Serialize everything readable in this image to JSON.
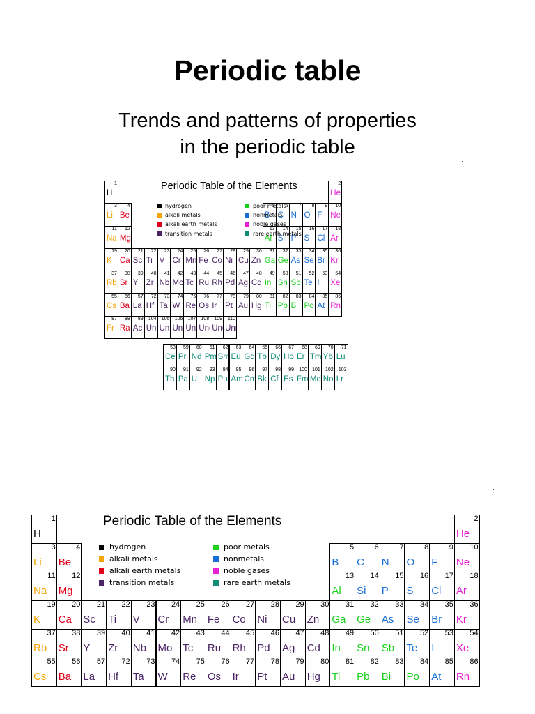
{
  "page": {
    "title": "Periodic table",
    "subtitle_line1": "Trends and patterns of properties",
    "subtitle_line2": "in the periodic table"
  },
  "table": {
    "title": "Periodic Table of the Elements",
    "legend": [
      {
        "label": "hydrogen",
        "color": "#000000"
      },
      {
        "label": "alkali metals",
        "color": "#f5a400"
      },
      {
        "label": "alkali earth metals",
        "color": "#e0001b"
      },
      {
        "label": "transition metals",
        "color": "#4a2464"
      },
      {
        "label": "poor metals",
        "color": "#19d11d"
      },
      {
        "label": "nonmetals",
        "color": "#1a6fd6"
      },
      {
        "label": "noble gases",
        "color": "#e61fd3"
      },
      {
        "label": "rare earth metals",
        "color": "#118a76"
      }
    ],
    "elements": [
      {
        "n": "1",
        "s": "H",
        "c": "#000000"
      },
      {
        "n": "2",
        "s": "He",
        "c": "#e61fd3"
      },
      {
        "n": "3",
        "s": "Li",
        "c": "#f5a400"
      },
      {
        "n": "4",
        "s": "Be",
        "c": "#e0001b"
      },
      {
        "n": "5",
        "s": "B",
        "c": "#1a6fd6"
      },
      {
        "n": "6",
        "s": "C",
        "c": "#1a6fd6"
      },
      {
        "n": "7",
        "s": "N",
        "c": "#1a6fd6"
      },
      {
        "n": "8",
        "s": "O",
        "c": "#1a6fd6"
      },
      {
        "n": "9",
        "s": "F",
        "c": "#1a6fd6"
      },
      {
        "n": "10",
        "s": "Ne",
        "c": "#e61fd3"
      },
      {
        "n": "11",
        "s": "Na",
        "c": "#f5a400"
      },
      {
        "n": "12",
        "s": "Mg",
        "c": "#e0001b"
      },
      {
        "n": "13",
        "s": "Al",
        "c": "#19d11d"
      },
      {
        "n": "14",
        "s": "Si",
        "c": "#1a6fd6"
      },
      {
        "n": "15",
        "s": "P",
        "c": "#1a6fd6"
      },
      {
        "n": "16",
        "s": "S",
        "c": "#1a6fd6"
      },
      {
        "n": "17",
        "s": "Cl",
        "c": "#1a6fd6"
      },
      {
        "n": "18",
        "s": "Ar",
        "c": "#e61fd3"
      },
      {
        "n": "19",
        "s": "K",
        "c": "#f5a400"
      },
      {
        "n": "20",
        "s": "Ca",
        "c": "#e0001b"
      },
      {
        "n": "21",
        "s": "Sc",
        "c": "#4a2464"
      },
      {
        "n": "22",
        "s": "Ti",
        "c": "#4a2464"
      },
      {
        "n": "23",
        "s": "V",
        "c": "#4a2464"
      },
      {
        "n": "24",
        "s": "Cr",
        "c": "#4a2464"
      },
      {
        "n": "25",
        "s": "Mn",
        "c": "#4a2464"
      },
      {
        "n": "26",
        "s": "Fe",
        "c": "#4a2464"
      },
      {
        "n": "27",
        "s": "Co",
        "c": "#4a2464"
      },
      {
        "n": "28",
        "s": "Ni",
        "c": "#4a2464"
      },
      {
        "n": "29",
        "s": "Cu",
        "c": "#4a2464"
      },
      {
        "n": "30",
        "s": "Zn",
        "c": "#4a2464"
      },
      {
        "n": "31",
        "s": "Ga",
        "c": "#19d11d"
      },
      {
        "n": "32",
        "s": "Ge",
        "c": "#19d11d"
      },
      {
        "n": "33",
        "s": "As",
        "c": "#1a6fd6"
      },
      {
        "n": "34",
        "s": "Se",
        "c": "#1a6fd6"
      },
      {
        "n": "35",
        "s": "Br",
        "c": "#1a6fd6"
      },
      {
        "n": "36",
        "s": "Kr",
        "c": "#e61fd3"
      },
      {
        "n": "37",
        "s": "Rb",
        "c": "#f5a400"
      },
      {
        "n": "38",
        "s": "Sr",
        "c": "#e0001b"
      },
      {
        "n": "39",
        "s": "Y",
        "c": "#4a2464"
      },
      {
        "n": "40",
        "s": "Zr",
        "c": "#4a2464"
      },
      {
        "n": "41",
        "s": "Nb",
        "c": "#4a2464"
      },
      {
        "n": "42",
        "s": "Mo",
        "c": "#4a2464"
      },
      {
        "n": "43",
        "s": "Tc",
        "c": "#4a2464"
      },
      {
        "n": "44",
        "s": "Ru",
        "c": "#4a2464"
      },
      {
        "n": "45",
        "s": "Rh",
        "c": "#4a2464"
      },
      {
        "n": "46",
        "s": "Pd",
        "c": "#4a2464"
      },
      {
        "n": "47",
        "s": "Ag",
        "c": "#4a2464"
      },
      {
        "n": "48",
        "s": "Cd",
        "c": "#4a2464"
      },
      {
        "n": "49",
        "s": "In",
        "c": "#19d11d"
      },
      {
        "n": "50",
        "s": "Sn",
        "c": "#19d11d"
      },
      {
        "n": "51",
        "s": "Sb",
        "c": "#19d11d"
      },
      {
        "n": "52",
        "s": "Te",
        "c": "#1a6fd6"
      },
      {
        "n": "53",
        "s": "I",
        "c": "#1a6fd6"
      },
      {
        "n": "54",
        "s": "Xe",
        "c": "#e61fd3"
      },
      {
        "n": "55",
        "s": "Cs",
        "c": "#f5a400"
      },
      {
        "n": "56",
        "s": "Ba",
        "c": "#e0001b"
      },
      {
        "n": "57",
        "s": "La",
        "c": "#4a2464"
      },
      {
        "n": "72",
        "s": "Hf",
        "c": "#4a2464"
      },
      {
        "n": "73",
        "s": "Ta",
        "c": "#4a2464"
      },
      {
        "n": "74",
        "s": "W",
        "c": "#4a2464"
      },
      {
        "n": "75",
        "s": "Re",
        "c": "#4a2464"
      },
      {
        "n": "76",
        "s": "Os",
        "c": "#4a2464"
      },
      {
        "n": "77",
        "s": "Ir",
        "c": "#4a2464"
      },
      {
        "n": "78",
        "s": "Pt",
        "c": "#4a2464"
      },
      {
        "n": "79",
        "s": "Au",
        "c": "#4a2464"
      },
      {
        "n": "80",
        "s": "Hg",
        "c": "#4a2464"
      },
      {
        "n": "81",
        "s": "Ti",
        "c": "#19d11d"
      },
      {
        "n": "82",
        "s": "Pb",
        "c": "#19d11d"
      },
      {
        "n": "83",
        "s": "Bi",
        "c": "#19d11d"
      },
      {
        "n": "84",
        "s": "Po",
        "c": "#19d11d"
      },
      {
        "n": "85",
        "s": "At",
        "c": "#1a6fd6"
      },
      {
        "n": "86",
        "s": "Rn",
        "c": "#e61fd3"
      },
      {
        "n": "87",
        "s": "Fr",
        "c": "#f5a400"
      },
      {
        "n": "88",
        "s": "Ra",
        "c": "#e0001b"
      },
      {
        "n": "89",
        "s": "Ac",
        "c": "#4a2464"
      },
      {
        "n": "104",
        "s": "Unq",
        "c": "#4a2464"
      },
      {
        "n": "105",
        "s": "Unp",
        "c": "#4a2464"
      },
      {
        "n": "106",
        "s": "Unh",
        "c": "#4a2464"
      },
      {
        "n": "107",
        "s": "Uns",
        "c": "#4a2464"
      },
      {
        "n": "108",
        "s": "Uno",
        "c": "#4a2464"
      },
      {
        "n": "109",
        "s": "Une",
        "c": "#4a2464"
      },
      {
        "n": "110",
        "s": "Unn",
        "c": "#4a2464"
      },
      {
        "n": "58",
        "s": "Ce",
        "c": "#118a76"
      },
      {
        "n": "59",
        "s": "Pr",
        "c": "#118a76"
      },
      {
        "n": "60",
        "s": "Nd",
        "c": "#118a76"
      },
      {
        "n": "61",
        "s": "Pm",
        "c": "#118a76"
      },
      {
        "n": "62",
        "s": "Sm",
        "c": "#118a76"
      },
      {
        "n": "63",
        "s": "Eu",
        "c": "#118a76"
      },
      {
        "n": "64",
        "s": "Gd",
        "c": "#118a76"
      },
      {
        "n": "65",
        "s": "Tb",
        "c": "#118a76"
      },
      {
        "n": "66",
        "s": "Dy",
        "c": "#118a76"
      },
      {
        "n": "67",
        "s": "Ho",
        "c": "#118a76"
      },
      {
        "n": "68",
        "s": "Er",
        "c": "#118a76"
      },
      {
        "n": "69",
        "s": "Tm",
        "c": "#118a76"
      },
      {
        "n": "70",
        "s": "Yb",
        "c": "#118a76"
      },
      {
        "n": "71",
        "s": "Lu",
        "c": "#118a76"
      },
      {
        "n": "90",
        "s": "Th",
        "c": "#118a76"
      },
      {
        "n": "91",
        "s": "Pa",
        "c": "#118a76"
      },
      {
        "n": "92",
        "s": "U",
        "c": "#118a76"
      },
      {
        "n": "93",
        "s": "Np",
        "c": "#118a76"
      },
      {
        "n": "94",
        "s": "Pu",
        "c": "#118a76"
      },
      {
        "n": "95",
        "s": "Am",
        "c": "#118a76"
      },
      {
        "n": "96",
        "s": "Cm",
        "c": "#118a76"
      },
      {
        "n": "97",
        "s": "Bk",
        "c": "#118a76"
      },
      {
        "n": "98",
        "s": "Cf",
        "c": "#118a76"
      },
      {
        "n": "99",
        "s": "Es",
        "c": "#118a76"
      },
      {
        "n": "100",
        "s": "Fm",
        "c": "#118a76"
      },
      {
        "n": "101",
        "s": "Md",
        "c": "#118a76"
      },
      {
        "n": "102",
        "s": "No",
        "c": "#118a76"
      },
      {
        "n": "103",
        "s": "Lr",
        "c": "#118a76"
      }
    ]
  }
}
